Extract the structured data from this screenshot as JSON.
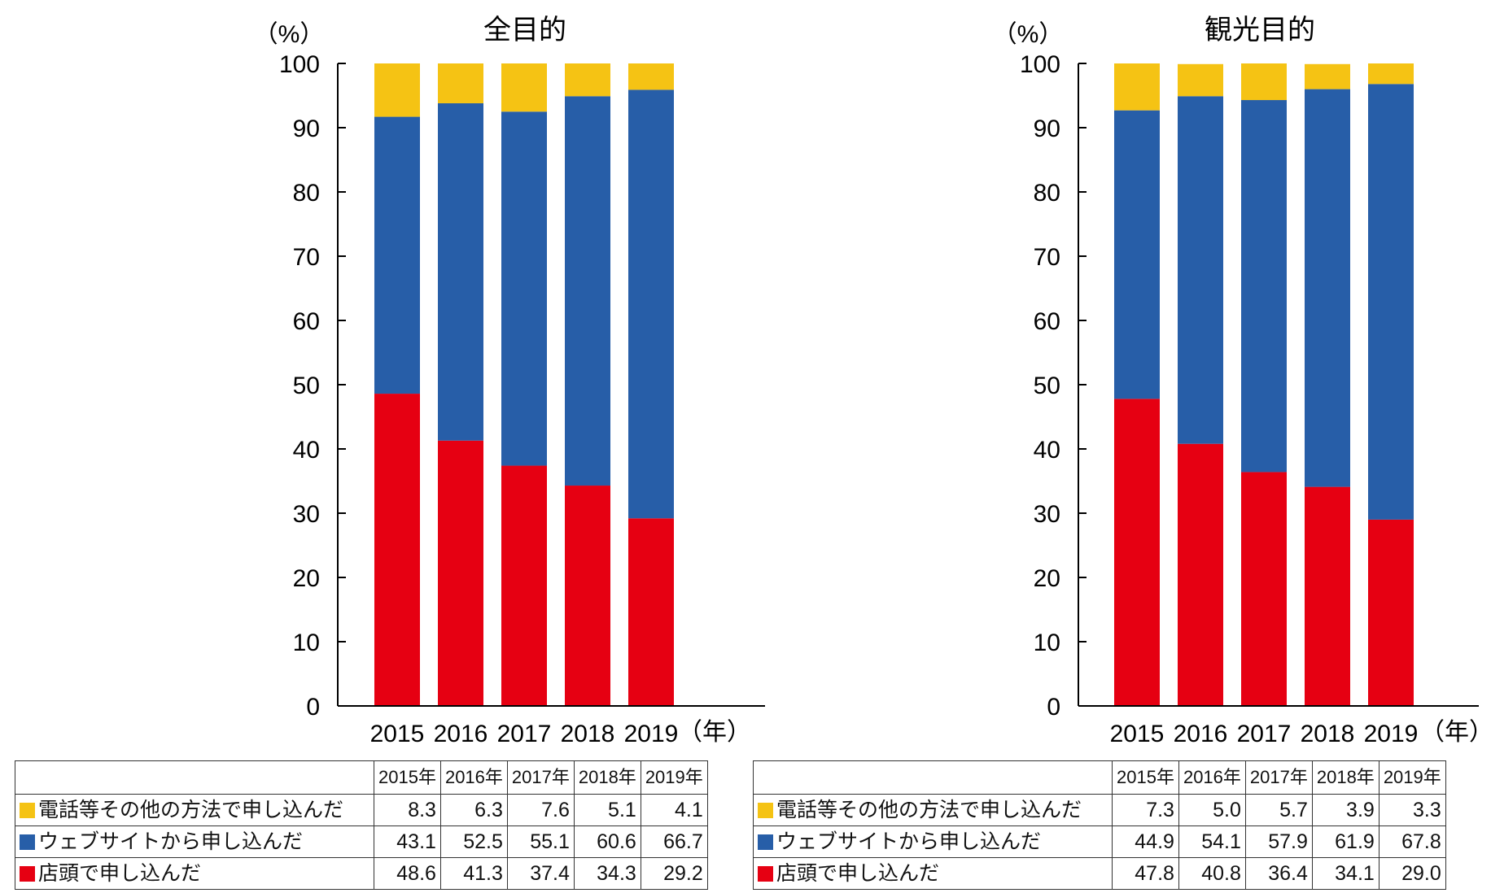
{
  "colors": {
    "phone": "#f5c314",
    "web": "#275ea8",
    "store": "#e60012"
  },
  "chart_data": [
    {
      "type": "bar",
      "stacked": true,
      "title": "全目的",
      "ylabel": "（%）",
      "xlabel": "（年）",
      "ylim": [
        0,
        100
      ],
      "yticks": [
        "0",
        "10",
        "20",
        "30",
        "40",
        "50",
        "60",
        "70",
        "80",
        "90",
        "100"
      ],
      "categories": [
        "2015",
        "2016",
        "2017",
        "2018",
        "2019"
      ],
      "series": [
        {
          "key": "store",
          "name": "店頭で申し込んだ",
          "values": [
            48.6,
            41.3,
            37.4,
            34.3,
            29.2
          ]
        },
        {
          "key": "web",
          "name": "ウェブサイトから申し込んだ",
          "values": [
            43.1,
            52.5,
            55.1,
            60.6,
            66.7
          ]
        },
        {
          "key": "phone",
          "name": "電話等その他の方法で申し込んだ",
          "values": [
            8.3,
            6.3,
            7.6,
            5.1,
            4.1
          ]
        }
      ]
    },
    {
      "type": "bar",
      "stacked": true,
      "title": "観光目的",
      "ylabel": "（%）",
      "xlabel": "（年）",
      "ylim": [
        0,
        100
      ],
      "yticks": [
        "0",
        "10",
        "20",
        "30",
        "40",
        "50",
        "60",
        "70",
        "80",
        "90",
        "100"
      ],
      "categories": [
        "2015",
        "2016",
        "2017",
        "2018",
        "2019"
      ],
      "series": [
        {
          "key": "store",
          "name": "店頭で申し込んだ",
          "values": [
            47.8,
            40.8,
            36.4,
            34.1,
            29.0
          ]
        },
        {
          "key": "web",
          "name": "ウェブサイトから申し込んだ",
          "values": [
            44.9,
            54.1,
            57.9,
            61.9,
            67.8
          ]
        },
        {
          "key": "phone",
          "name": "電話等その他の方法で申し込んだ",
          "values": [
            7.3,
            5.0,
            5.7,
            3.9,
            3.3
          ]
        }
      ]
    }
  ],
  "tables": [
    {
      "headers": [
        "2015年",
        "2016年",
        "2017年",
        "2018年",
        "2019年"
      ],
      "rows": [
        {
          "key": "phone",
          "label": "電話等その他の方法で申し込んだ",
          "values": [
            "8.3",
            "6.3",
            "7.6",
            "5.1",
            "4.1"
          ]
        },
        {
          "key": "web",
          "label": "ウェブサイトから申し込んだ",
          "values": [
            "43.1",
            "52.5",
            "55.1",
            "60.6",
            "66.7"
          ]
        },
        {
          "key": "store",
          "label": "店頭で申し込んだ",
          "values": [
            "48.6",
            "41.3",
            "37.4",
            "34.3",
            "29.2"
          ]
        }
      ]
    },
    {
      "headers": [
        "2015年",
        "2016年",
        "2017年",
        "2018年",
        "2019年"
      ],
      "rows": [
        {
          "key": "phone",
          "label": "電話等その他の方法で申し込んだ",
          "values": [
            "7.3",
            "5.0",
            "5.7",
            "3.9",
            "3.3"
          ]
        },
        {
          "key": "web",
          "label": "ウェブサイトから申し込んだ",
          "values": [
            "44.9",
            "54.1",
            "57.9",
            "61.9",
            "67.8"
          ]
        },
        {
          "key": "store",
          "label": "店頭で申し込んだ",
          "values": [
            "47.8",
            "40.8",
            "36.4",
            "34.1",
            "29.0"
          ]
        }
      ]
    }
  ]
}
